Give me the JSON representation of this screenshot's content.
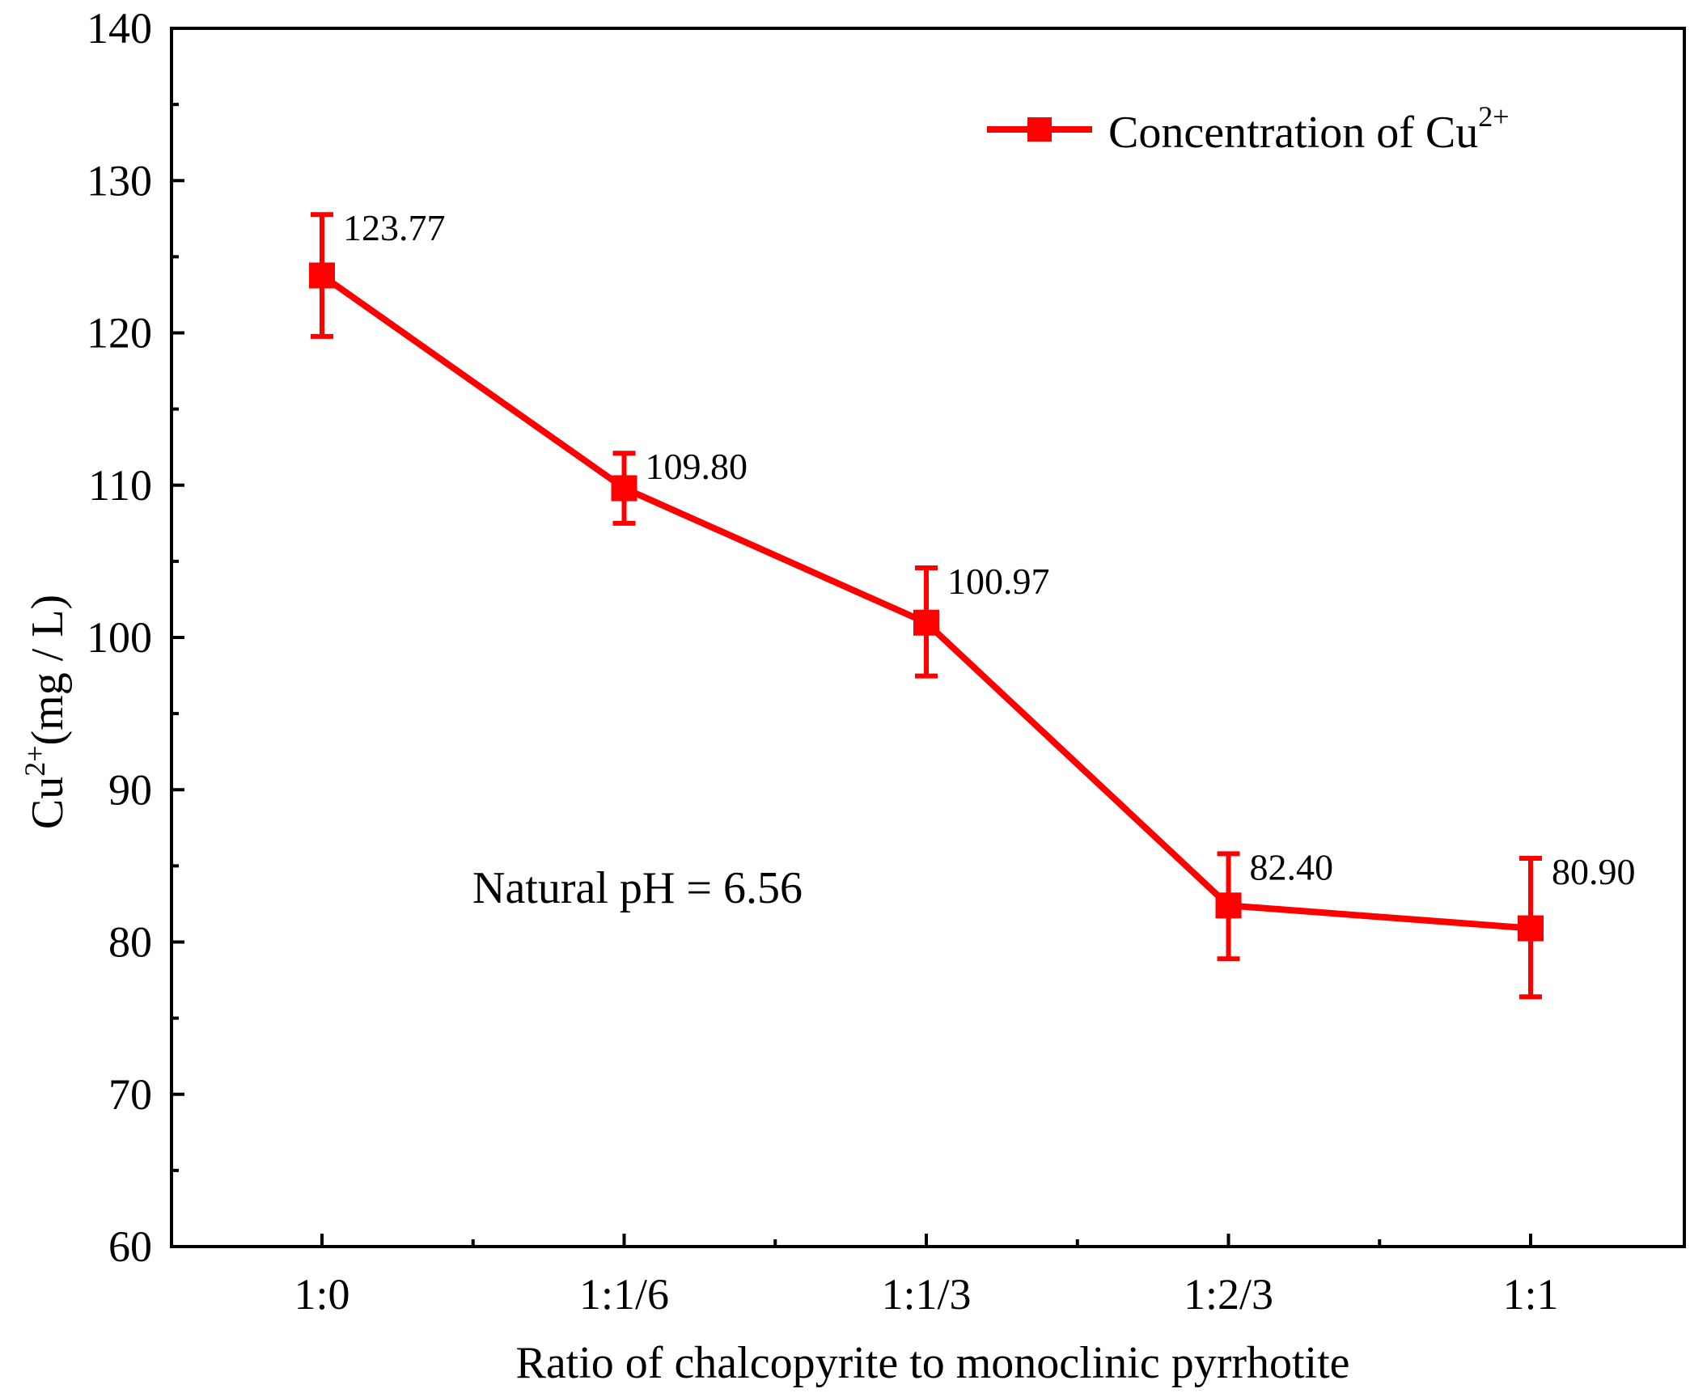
{
  "chart_data": {
    "type": "line",
    "xlabel": "Ratio of chalcopyrite to monoclinic pyrrhotite",
    "ylabel_main": "Cu",
    "ylabel_sup": "2+",
    "ylabel_unit": "(mg / L)",
    "ylim": [
      60,
      140
    ],
    "yticks": [
      60,
      70,
      80,
      90,
      100,
      110,
      120,
      130,
      140
    ],
    "categories": [
      "1:0",
      "1:1/6",
      "1:1/3",
      "1:2/3",
      "1:1"
    ],
    "series": [
      {
        "name": "Concentration of Cu",
        "name_sup": "2+",
        "color": "#ff0000",
        "values": [
          123.77,
          109.8,
          100.97,
          82.4,
          80.9
        ],
        "err_upper": [
          4.0,
          2.3,
          3.6,
          3.4,
          4.6
        ],
        "err_lower": [
          4.0,
          2.3,
          3.5,
          3.5,
          4.5
        ],
        "data_labels": [
          "123.77",
          "109.80",
          "100.97",
          "82.40",
          "80.90"
        ]
      }
    ],
    "annotation": "Natural pH = 6.56",
    "legend_position": "top-right",
    "grid": false
  }
}
